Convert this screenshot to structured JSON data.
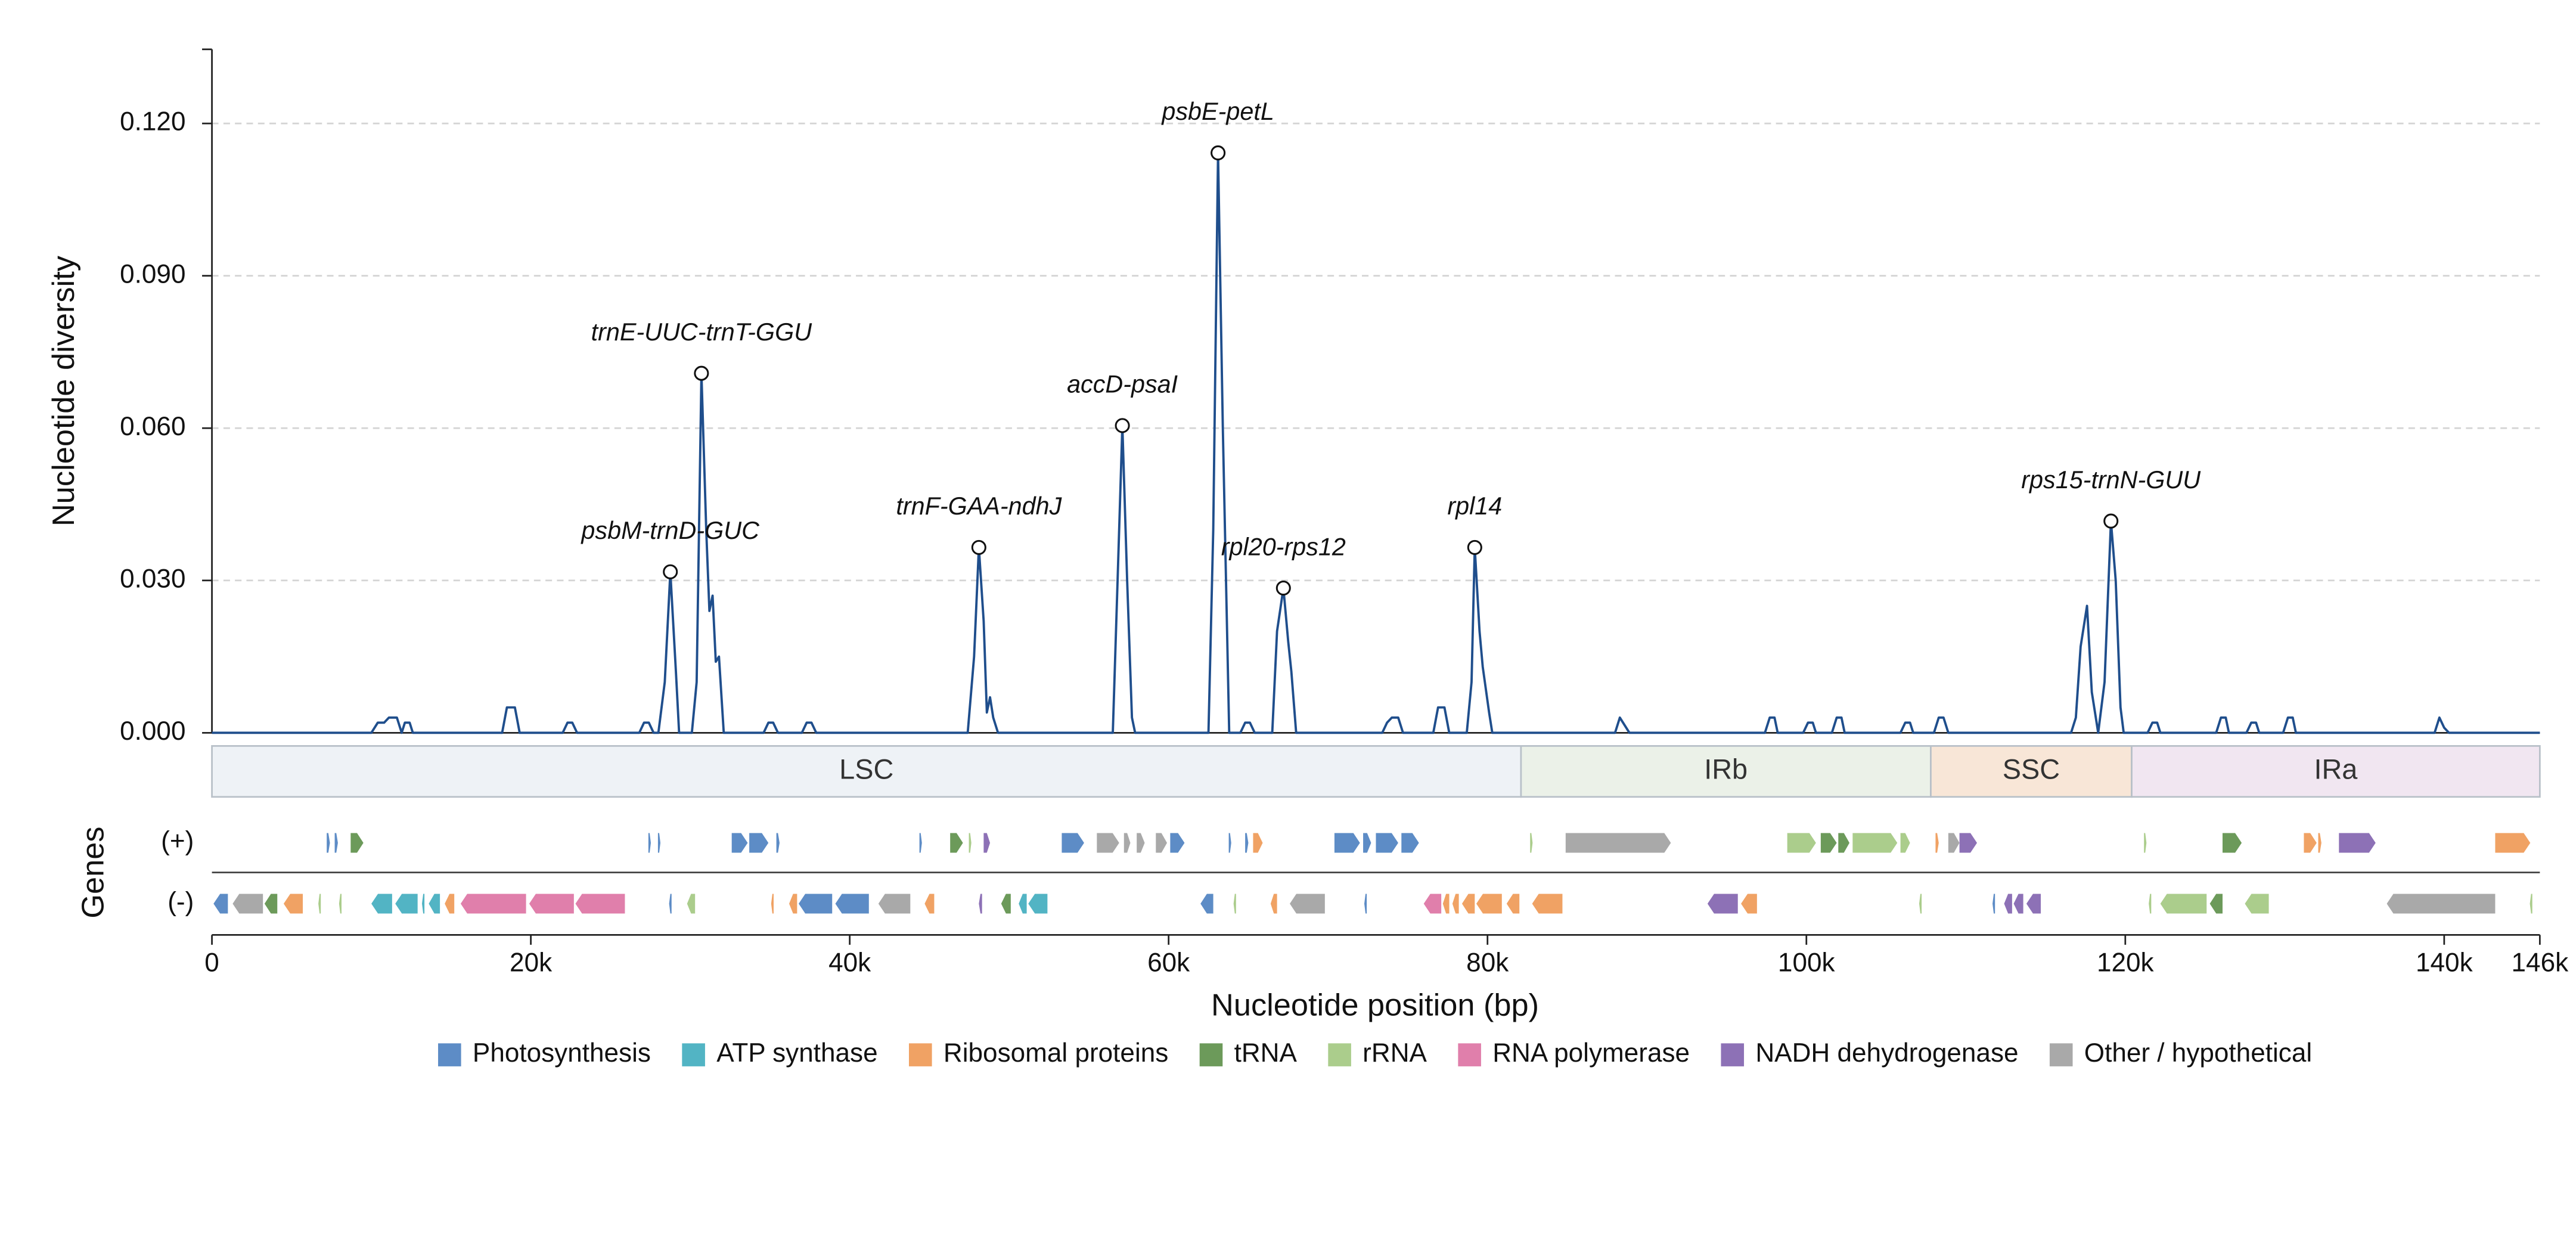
{
  "chart_data": {
    "type": "line",
    "y_label": "Nucleotide diversity",
    "x_label": "Nucleotide position (bp)",
    "color": "#1f4e8c",
    "xlim": [
      0,
      146000
    ],
    "ylim": [
      0,
      0.1346
    ],
    "xticks": [
      0,
      {
        "value": 20000,
        "label": "20k"
      },
      {
        "value": 40000,
        "label": "40k"
      },
      {
        "value": 60000,
        "label": "60k"
      },
      {
        "value": 80000,
        "label": "80k"
      },
      {
        "value": 100000,
        "label": "100k"
      },
      {
        "value": 120000,
        "label": "120k"
      },
      {
        "value": 140000,
        "label": "140k"
      },
      {
        "value": 146000,
        "label": "146k"
      }
    ],
    "yticks": [
      {
        "value": 0,
        "label": "0.000"
      },
      {
        "value": 0.03,
        "label": "0.030"
      },
      {
        "value": 0.06,
        "label": "0.060"
      },
      {
        "value": 0.09,
        "label": "0.090"
      },
      {
        "value": 0.12,
        "label": "0.120"
      }
    ],
    "grid": true,
    "x": [
      0,
      10000,
      10400,
      10800,
      11100,
      11600,
      11900,
      12100,
      12400,
      12600,
      18200,
      18500,
      19000,
      19300,
      22000,
      22300,
      22600,
      22900,
      26800,
      27100,
      27400,
      27700,
      28000,
      28400,
      28750,
      29100,
      29300,
      30100,
      30400,
      30700,
      31000,
      31200,
      31400,
      31600,
      31800,
      32100,
      34600,
      34900,
      35200,
      35500,
      37000,
      37300,
      37600,
      37900,
      47400,
      47800,
      48100,
      48400,
      48600,
      48800,
      49000,
      49300,
      56500,
      56800,
      57100,
      57400,
      57700,
      57900,
      62500,
      62800,
      63100,
      63400,
      63800,
      64500,
      64800,
      65100,
      65400,
      66500,
      66800,
      67200,
      67500,
      67700,
      68000,
      73400,
      73700,
      74000,
      74400,
      74700,
      76600,
      76900,
      77300,
      77600,
      78700,
      79000,
      79200,
      79500,
      79700,
      80100,
      80300,
      88000,
      88300,
      88600,
      88900,
      97400,
      97700,
      98000,
      98200,
      99800,
      100100,
      100400,
      100600,
      101600,
      101900,
      102200,
      102400,
      105900,
      106200,
      106500,
      106700,
      108000,
      108300,
      108600,
      108900,
      116600,
      116900,
      117200,
      117600,
      117900,
      118300,
      118700,
      119100,
      119400,
      119700,
      119900,
      121400,
      121700,
      122000,
      122200,
      125700,
      126000,
      126300,
      126500,
      127600,
      127900,
      128200,
      128400,
      129900,
      130200,
      130500,
      130700,
      139400,
      139700,
      140000,
      140300,
      146000
    ],
    "values": [
      0,
      0,
      0.002,
      0.002,
      0.003,
      0.003,
      0,
      0.002,
      0.002,
      0,
      0,
      0.005,
      0.005,
      0,
      0,
      0.002,
      0.002,
      0,
      0,
      0.002,
      0.002,
      0,
      0,
      0.01,
      0.0317,
      0.012,
      0,
      0,
      0.01,
      0.0708,
      0.04,
      0.024,
      0.027,
      0.014,
      0.015,
      0,
      0,
      0.002,
      0.002,
      0,
      0,
      0.002,
      0.002,
      0,
      0,
      0.015,
      0.0365,
      0.022,
      0.004,
      0.007,
      0.003,
      0,
      0,
      0.03,
      0.0605,
      0.03,
      0.003,
      0,
      0,
      0.04,
      0.1142,
      0.06,
      0,
      0,
      0.002,
      0.002,
      0,
      0,
      0.02,
      0.0285,
      0.018,
      0.012,
      0,
      0,
      0.002,
      0.003,
      0.003,
      0,
      0,
      0.005,
      0.005,
      0,
      0,
      0.01,
      0.0365,
      0.02,
      0.013,
      0.004,
      0,
      0,
      0.003,
      0.0015,
      0,
      0,
      0.003,
      0.003,
      0,
      0,
      0.002,
      0.002,
      0,
      0,
      0.003,
      0.003,
      0,
      0,
      0.002,
      0.002,
      0,
      0,
      0.003,
      0.003,
      0,
      0,
      0.003,
      0.017,
      0.025,
      0.008,
      0,
      0.01,
      0.0417,
      0.03,
      0.005,
      0,
      0,
      0.002,
      0.002,
      0,
      0,
      0.003,
      0.003,
      0,
      0,
      0.002,
      0.002,
      0,
      0,
      0.003,
      0.003,
      0,
      0,
      0.003,
      0.001,
      0,
      0
    ],
    "annotations": [
      {
        "text": "psbM-trnD-GUC",
        "x": 28750,
        "y": 0.0317
      },
      {
        "text": "trnE-UUC-trnT-GGU",
        "x": 30700,
        "y": 0.0708
      },
      {
        "text": "trnF-GAA-ndhJ",
        "x": 48100,
        "y": 0.0365
      },
      {
        "text": "accD-psaI",
        "x": 57100,
        "y": 0.0605
      },
      {
        "text": "psbE-petL",
        "x": 63100,
        "y": 0.1142
      },
      {
        "text": "rpl20-rps12",
        "x": 67200,
        "y": 0.0285
      },
      {
        "text": "rpl14",
        "x": 79200,
        "y": 0.0365
      },
      {
        "text": "rps15-trnN-GUU",
        "x": 119100,
        "y": 0.0417
      }
    ],
    "regions": [
      {
        "name": "LSC",
        "start": 0,
        "end": 82100,
        "color": "#eef2f6"
      },
      {
        "name": "IRb",
        "start": 82100,
        "end": 107800,
        "color": "#ebf1e8"
      },
      {
        "name": "SSC",
        "start": 107800,
        "end": 120400,
        "color": "#f8e6d7"
      },
      {
        "name": "IRa",
        "start": 120400,
        "end": 146000,
        "color": "#f1e6f1"
      }
    ],
    "genes_label": "Genes",
    "strand_labels": [
      "(+)",
      "(-)"
    ],
    "legend": [
      {
        "name": "Photosynthesis",
        "color": "#5d8cc6"
      },
      {
        "name": "ATP synthase",
        "color": "#52b4c4"
      },
      {
        "name": "Ribosomal proteins",
        "color": "#f0a264"
      },
      {
        "name": "tRNA",
        "color": "#6c9a5a"
      },
      {
        "name": "rRNA",
        "color": "#abcd8c"
      },
      {
        "name": "RNA polymerase",
        "color": "#e07fab"
      },
      {
        "name": "NADH dehydrogenase",
        "color": "#8d71b6"
      },
      {
        "name": "Other / hypothetical",
        "color": "#a9a9a9"
      }
    ],
    "genes": [
      {
        "start": 7200,
        "end": 7400,
        "strand": 0,
        "category": 0
      },
      {
        "start": 7700,
        "end": 7900,
        "strand": 0,
        "category": 0
      },
      {
        "start": 8700,
        "end": 9500,
        "strand": 0,
        "category": 3
      },
      {
        "start": 27400,
        "end": 27500,
        "strand": 0,
        "category": 0
      },
      {
        "start": 28000,
        "end": 28100,
        "strand": 0,
        "category": 0
      },
      {
        "start": 32600,
        "end": 33600,
        "strand": 0,
        "category": 0
      },
      {
        "start": 33700,
        "end": 34900,
        "strand": 0,
        "category": 0
      },
      {
        "start": 35400,
        "end": 35600,
        "strand": 0,
        "category": 0
      },
      {
        "start": 44400,
        "end": 44500,
        "strand": 0,
        "category": 0
      },
      {
        "start": 46300,
        "end": 47100,
        "strand": 0,
        "category": 3
      },
      {
        "start": 47500,
        "end": 47600,
        "strand": 0,
        "category": 4
      },
      {
        "start": 48400,
        "end": 48800,
        "strand": 0,
        "category": 6
      },
      {
        "start": 53300,
        "end": 54700,
        "strand": 0,
        "category": 0
      },
      {
        "start": 55500,
        "end": 56900,
        "strand": 0,
        "category": 7
      },
      {
        "start": 57200,
        "end": 57600,
        "strand": 0,
        "category": 7
      },
      {
        "start": 58000,
        "end": 58500,
        "strand": 0,
        "category": 7
      },
      {
        "start": 59200,
        "end": 59900,
        "strand": 0,
        "category": 7
      },
      {
        "start": 60100,
        "end": 61000,
        "strand": 0,
        "category": 0
      },
      {
        "start": 63800,
        "end": 63900,
        "strand": 0,
        "category": 0
      },
      {
        "start": 64800,
        "end": 65000,
        "strand": 0,
        "category": 0
      },
      {
        "start": 65300,
        "end": 65900,
        "strand": 0,
        "category": 2
      },
      {
        "start": 70400,
        "end": 72000,
        "strand": 0,
        "category": 0
      },
      {
        "start": 72200,
        "end": 72700,
        "strand": 0,
        "category": 0
      },
      {
        "start": 73000,
        "end": 74400,
        "strand": 0,
        "category": 0
      },
      {
        "start": 74600,
        "end": 75700,
        "strand": 0,
        "category": 0
      },
      {
        "start": 82700,
        "end": 82800,
        "strand": 0,
        "category": 4
      },
      {
        "start": 84900,
        "end": 91500,
        "strand": 0,
        "category": 7
      },
      {
        "start": 98800,
        "end": 100600,
        "strand": 0,
        "category": 4
      },
      {
        "start": 100900,
        "end": 101900,
        "strand": 0,
        "category": 3
      },
      {
        "start": 102000,
        "end": 102700,
        "strand": 0,
        "category": 3
      },
      {
        "start": 102900,
        "end": 105700,
        "strand": 0,
        "category": 4
      },
      {
        "start": 105900,
        "end": 106500,
        "strand": 0,
        "category": 4
      },
      {
        "start": 108100,
        "end": 108300,
        "strand": 0,
        "category": 2
      },
      {
        "start": 108900,
        "end": 109600,
        "strand": 0,
        "category": 7
      },
      {
        "start": 109600,
        "end": 110700,
        "strand": 0,
        "category": 6
      },
      {
        "start": 121200,
        "end": 121300,
        "strand": 0,
        "category": 4
      },
      {
        "start": 126100,
        "end": 127300,
        "strand": 0,
        "category": 3
      },
      {
        "start": 131200,
        "end": 132000,
        "strand": 0,
        "category": 2
      },
      {
        "start": 132100,
        "end": 132300,
        "strand": 0,
        "category": 2
      },
      {
        "start": 133400,
        "end": 135700,
        "strand": 0,
        "category": 6
      },
      {
        "start": 143200,
        "end": 145400,
        "strand": 0,
        "category": 2
      },
      {
        "start": 100,
        "end": 1000,
        "strand": 1,
        "category": 0
      },
      {
        "start": 1300,
        "end": 3200,
        "strand": 1,
        "category": 7
      },
      {
        "start": 3300,
        "end": 4100,
        "strand": 1,
        "category": 3
      },
      {
        "start": 4500,
        "end": 5700,
        "strand": 1,
        "category": 2
      },
      {
        "start": 6700,
        "end": 6800,
        "strand": 1,
        "category": 4
      },
      {
        "start": 8000,
        "end": 8100,
        "strand": 1,
        "category": 4
      },
      {
        "start": 10000,
        "end": 11300,
        "strand": 1,
        "category": 1
      },
      {
        "start": 11500,
        "end": 12900,
        "strand": 1,
        "category": 1
      },
      {
        "start": 13200,
        "end": 13300,
        "strand": 1,
        "category": 1
      },
      {
        "start": 13600,
        "end": 14300,
        "strand": 1,
        "category": 1
      },
      {
        "start": 14600,
        "end": 15200,
        "strand": 1,
        "category": 2
      },
      {
        "start": 15600,
        "end": 19700,
        "strand": 1,
        "category": 5
      },
      {
        "start": 19900,
        "end": 22700,
        "strand": 1,
        "category": 5
      },
      {
        "start": 22800,
        "end": 25900,
        "strand": 1,
        "category": 5
      },
      {
        "start": 28700,
        "end": 28800,
        "strand": 1,
        "category": 0
      },
      {
        "start": 29800,
        "end": 30300,
        "strand": 1,
        "category": 4
      },
      {
        "start": 35100,
        "end": 35200,
        "strand": 1,
        "category": 2
      },
      {
        "start": 36200,
        "end": 36700,
        "strand": 1,
        "category": 2
      },
      {
        "start": 36800,
        "end": 38900,
        "strand": 1,
        "category": 0
      },
      {
        "start": 39100,
        "end": 41200,
        "strand": 1,
        "category": 0
      },
      {
        "start": 41800,
        "end": 43800,
        "strand": 1,
        "category": 7
      },
      {
        "start": 44700,
        "end": 45300,
        "strand": 1,
        "category": 2
      },
      {
        "start": 48100,
        "end": 48300,
        "strand": 1,
        "category": 6
      },
      {
        "start": 49500,
        "end": 50100,
        "strand": 1,
        "category": 3
      },
      {
        "start": 50600,
        "end": 51100,
        "strand": 1,
        "category": 1
      },
      {
        "start": 51200,
        "end": 52400,
        "strand": 1,
        "category": 1
      },
      {
        "start": 62000,
        "end": 62800,
        "strand": 1,
        "category": 0
      },
      {
        "start": 64100,
        "end": 64200,
        "strand": 1,
        "category": 4
      },
      {
        "start": 66400,
        "end": 66800,
        "strand": 1,
        "category": 2
      },
      {
        "start": 67600,
        "end": 69800,
        "strand": 1,
        "category": 7
      },
      {
        "start": 72300,
        "end": 72400,
        "strand": 1,
        "category": 0
      },
      {
        "start": 76000,
        "end": 77100,
        "strand": 1,
        "category": 5
      },
      {
        "start": 77200,
        "end": 77600,
        "strand": 1,
        "category": 2
      },
      {
        "start": 77800,
        "end": 78200,
        "strand": 1,
        "category": 2
      },
      {
        "start": 78400,
        "end": 79200,
        "strand": 1,
        "category": 2
      },
      {
        "start": 79300,
        "end": 80900,
        "strand": 1,
        "category": 2
      },
      {
        "start": 81200,
        "end": 82000,
        "strand": 1,
        "category": 2
      },
      {
        "start": 82800,
        "end": 84700,
        "strand": 1,
        "category": 2
      },
      {
        "start": 93800,
        "end": 95700,
        "strand": 1,
        "category": 6
      },
      {
        "start": 95900,
        "end": 96900,
        "strand": 1,
        "category": 2
      },
      {
        "start": 107100,
        "end": 107200,
        "strand": 1,
        "category": 4
      },
      {
        "start": 111700,
        "end": 111800,
        "strand": 1,
        "category": 0
      },
      {
        "start": 112400,
        "end": 112900,
        "strand": 1,
        "category": 6
      },
      {
        "start": 113000,
        "end": 113600,
        "strand": 1,
        "category": 6
      },
      {
        "start": 113800,
        "end": 114700,
        "strand": 1,
        "category": 6
      },
      {
        "start": 121500,
        "end": 121600,
        "strand": 1,
        "category": 4
      },
      {
        "start": 122200,
        "end": 125100,
        "strand": 1,
        "category": 4
      },
      {
        "start": 125300,
        "end": 126100,
        "strand": 1,
        "category": 3
      },
      {
        "start": 127500,
        "end": 129000,
        "strand": 1,
        "category": 4
      },
      {
        "start": 136400,
        "end": 143200,
        "strand": 1,
        "category": 7
      },
      {
        "start": 145400,
        "end": 145500,
        "strand": 1,
        "category": 4
      }
    ]
  }
}
